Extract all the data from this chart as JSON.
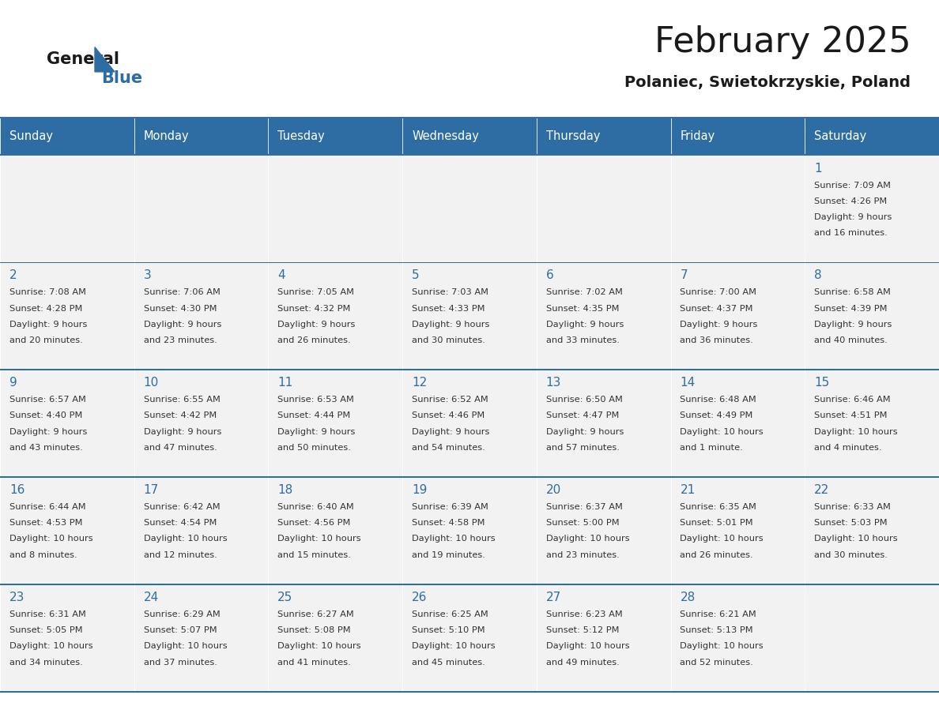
{
  "title": "February 2025",
  "subtitle": "Polaniec, Swietokrzyskie, Poland",
  "header_bg_color": "#2E6DA4",
  "header_text_color": "#FFFFFF",
  "cell_bg_color": "#F2F2F2",
  "border_color": "#2E6DA4",
  "text_color": "#333333",
  "day_number_color": "#2E6DA4",
  "days_of_week": [
    "Sunday",
    "Monday",
    "Tuesday",
    "Wednesday",
    "Thursday",
    "Friday",
    "Saturday"
  ],
  "calendar_data": [
    [
      null,
      null,
      null,
      null,
      null,
      null,
      {
        "day": 1,
        "sunrise": "7:09 AM",
        "sunset": "4:26 PM",
        "daylight": "9 hours and 16 minutes."
      }
    ],
    [
      {
        "day": 2,
        "sunrise": "7:08 AM",
        "sunset": "4:28 PM",
        "daylight": "9 hours and 20 minutes."
      },
      {
        "day": 3,
        "sunrise": "7:06 AM",
        "sunset": "4:30 PM",
        "daylight": "9 hours and 23 minutes."
      },
      {
        "day": 4,
        "sunrise": "7:05 AM",
        "sunset": "4:32 PM",
        "daylight": "9 hours and 26 minutes."
      },
      {
        "day": 5,
        "sunrise": "7:03 AM",
        "sunset": "4:33 PM",
        "daylight": "9 hours and 30 minutes."
      },
      {
        "day": 6,
        "sunrise": "7:02 AM",
        "sunset": "4:35 PM",
        "daylight": "9 hours and 33 minutes."
      },
      {
        "day": 7,
        "sunrise": "7:00 AM",
        "sunset": "4:37 PM",
        "daylight": "9 hours and 36 minutes."
      },
      {
        "day": 8,
        "sunrise": "6:58 AM",
        "sunset": "4:39 PM",
        "daylight": "9 hours and 40 minutes."
      }
    ],
    [
      {
        "day": 9,
        "sunrise": "6:57 AM",
        "sunset": "4:40 PM",
        "daylight": "9 hours and 43 minutes."
      },
      {
        "day": 10,
        "sunrise": "6:55 AM",
        "sunset": "4:42 PM",
        "daylight": "9 hours and 47 minutes."
      },
      {
        "day": 11,
        "sunrise": "6:53 AM",
        "sunset": "4:44 PM",
        "daylight": "9 hours and 50 minutes."
      },
      {
        "day": 12,
        "sunrise": "6:52 AM",
        "sunset": "4:46 PM",
        "daylight": "9 hours and 54 minutes."
      },
      {
        "day": 13,
        "sunrise": "6:50 AM",
        "sunset": "4:47 PM",
        "daylight": "9 hours and 57 minutes."
      },
      {
        "day": 14,
        "sunrise": "6:48 AM",
        "sunset": "4:49 PM",
        "daylight": "10 hours and 1 minute."
      },
      {
        "day": 15,
        "sunrise": "6:46 AM",
        "sunset": "4:51 PM",
        "daylight": "10 hours and 4 minutes."
      }
    ],
    [
      {
        "day": 16,
        "sunrise": "6:44 AM",
        "sunset": "4:53 PM",
        "daylight": "10 hours and 8 minutes."
      },
      {
        "day": 17,
        "sunrise": "6:42 AM",
        "sunset": "4:54 PM",
        "daylight": "10 hours and 12 minutes."
      },
      {
        "day": 18,
        "sunrise": "6:40 AM",
        "sunset": "4:56 PM",
        "daylight": "10 hours and 15 minutes."
      },
      {
        "day": 19,
        "sunrise": "6:39 AM",
        "sunset": "4:58 PM",
        "daylight": "10 hours and 19 minutes."
      },
      {
        "day": 20,
        "sunrise": "6:37 AM",
        "sunset": "5:00 PM",
        "daylight": "10 hours and 23 minutes."
      },
      {
        "day": 21,
        "sunrise": "6:35 AM",
        "sunset": "5:01 PM",
        "daylight": "10 hours and 26 minutes."
      },
      {
        "day": 22,
        "sunrise": "6:33 AM",
        "sunset": "5:03 PM",
        "daylight": "10 hours and 30 minutes."
      }
    ],
    [
      {
        "day": 23,
        "sunrise": "6:31 AM",
        "sunset": "5:05 PM",
        "daylight": "10 hours and 34 minutes."
      },
      {
        "day": 24,
        "sunrise": "6:29 AM",
        "sunset": "5:07 PM",
        "daylight": "10 hours and 37 minutes."
      },
      {
        "day": 25,
        "sunrise": "6:27 AM",
        "sunset": "5:08 PM",
        "daylight": "10 hours and 41 minutes."
      },
      {
        "day": 26,
        "sunrise": "6:25 AM",
        "sunset": "5:10 PM",
        "daylight": "10 hours and 45 minutes."
      },
      {
        "day": 27,
        "sunrise": "6:23 AM",
        "sunset": "5:12 PM",
        "daylight": "10 hours and 49 minutes."
      },
      {
        "day": 28,
        "sunrise": "6:21 AM",
        "sunset": "5:13 PM",
        "daylight": "10 hours and 52 minutes."
      },
      null
    ]
  ]
}
